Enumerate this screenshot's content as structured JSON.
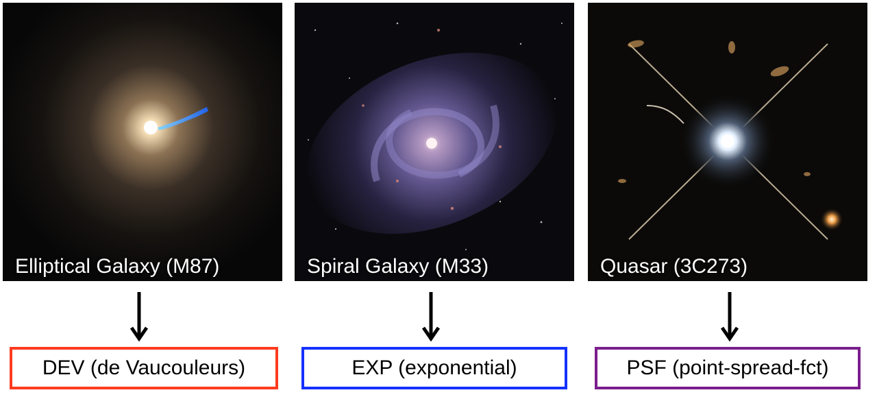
{
  "panels": [
    {
      "caption": "Elliptical Galaxy (M87)",
      "model": "DEV (de Vaucouleurs)",
      "color": "#ff3b1f"
    },
    {
      "caption": "Spiral Galaxy (M33)",
      "model": "EXP (exponential)",
      "color": "#1431ff"
    },
    {
      "caption": "Quasar (3C273)",
      "model": "PSF (point-spread-fct)",
      "color": "#7a1e8c"
    }
  ]
}
